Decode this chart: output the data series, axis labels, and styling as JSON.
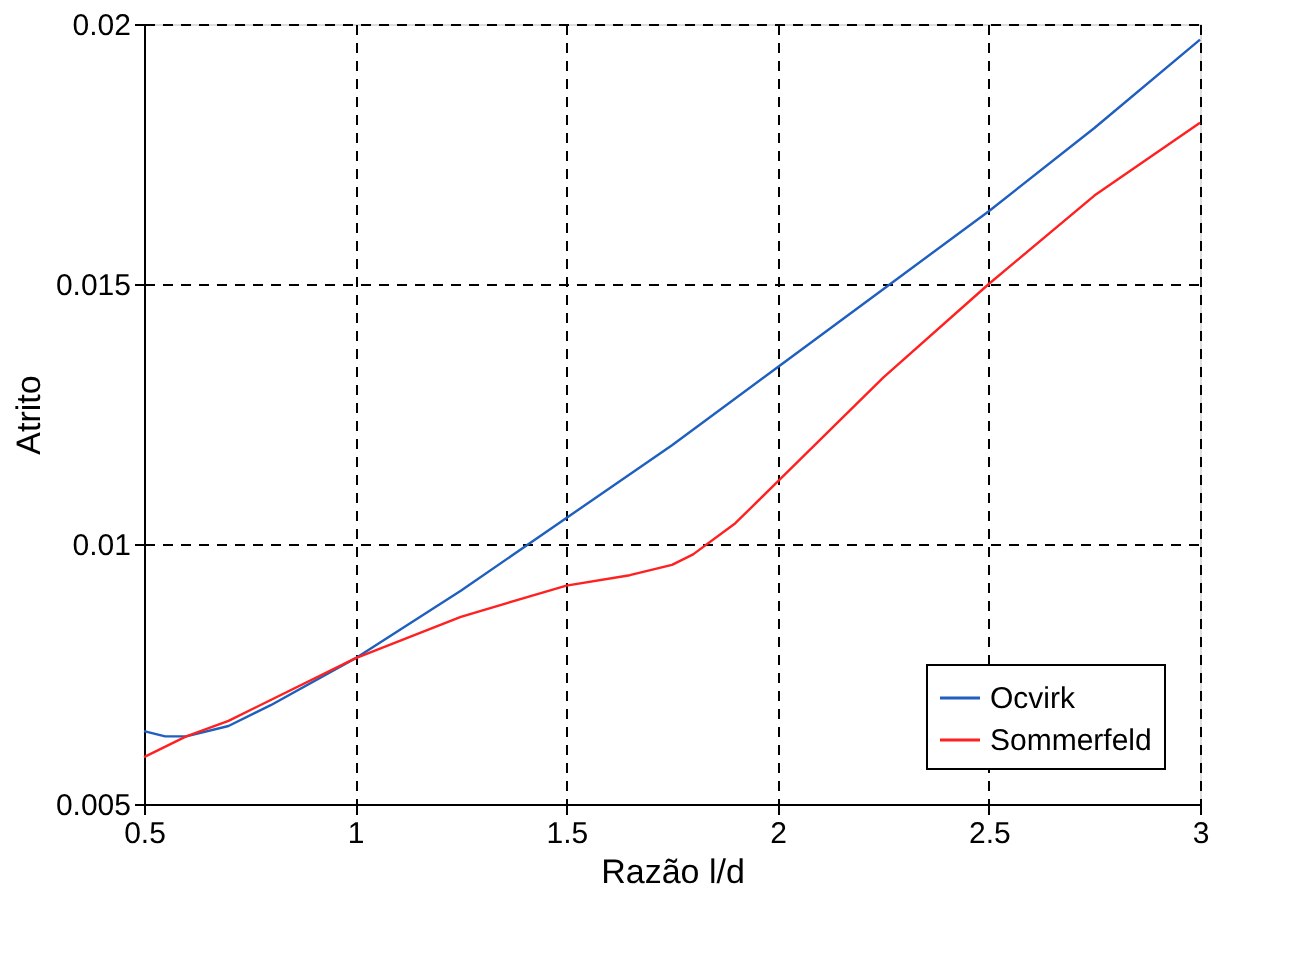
{
  "chart_data": {
    "type": "line",
    "xlabel": "Razão l/d",
    "ylabel": "Atrito",
    "xlim": [
      0.5,
      3
    ],
    "ylim": [
      0.005,
      0.02
    ],
    "xticks": [
      0.5,
      1,
      1.5,
      2,
      2.5,
      3
    ],
    "yticks": [
      0.005,
      0.01,
      0.015,
      0.02
    ],
    "grid": true,
    "legend": "bottom right",
    "line_style": "solid",
    "series": [
      {
        "name": "Ocvirk",
        "color": "#1f5fbf",
        "x": [
          0.5,
          0.55,
          0.6,
          0.7,
          0.8,
          1,
          1.25,
          1.5,
          1.75,
          2,
          2.25,
          2.5,
          2.75,
          3
        ],
        "values": [
          0.0064,
          0.0063,
          0.0063,
          0.0065,
          0.0069,
          0.0078,
          0.0091,
          0.0105,
          0.0119,
          0.0134,
          0.0149,
          0.0164,
          0.018,
          0.0197
        ]
      },
      {
        "name": "Sommerfeld",
        "color": "#ff2020",
        "x": [
          0.5,
          0.6,
          0.7,
          0.8,
          1,
          1.25,
          1.5,
          1.65,
          1.75,
          1.8,
          1.9,
          2,
          2.25,
          2.5,
          2.75,
          3
        ],
        "values": [
          0.0059,
          0.0063,
          0.0066,
          0.007,
          0.0078,
          0.0086,
          0.0092,
          0.0094,
          0.0096,
          0.0098,
          0.0104,
          0.0112,
          0.0132,
          0.015,
          0.0167,
          0.0181
        ]
      }
    ]
  }
}
